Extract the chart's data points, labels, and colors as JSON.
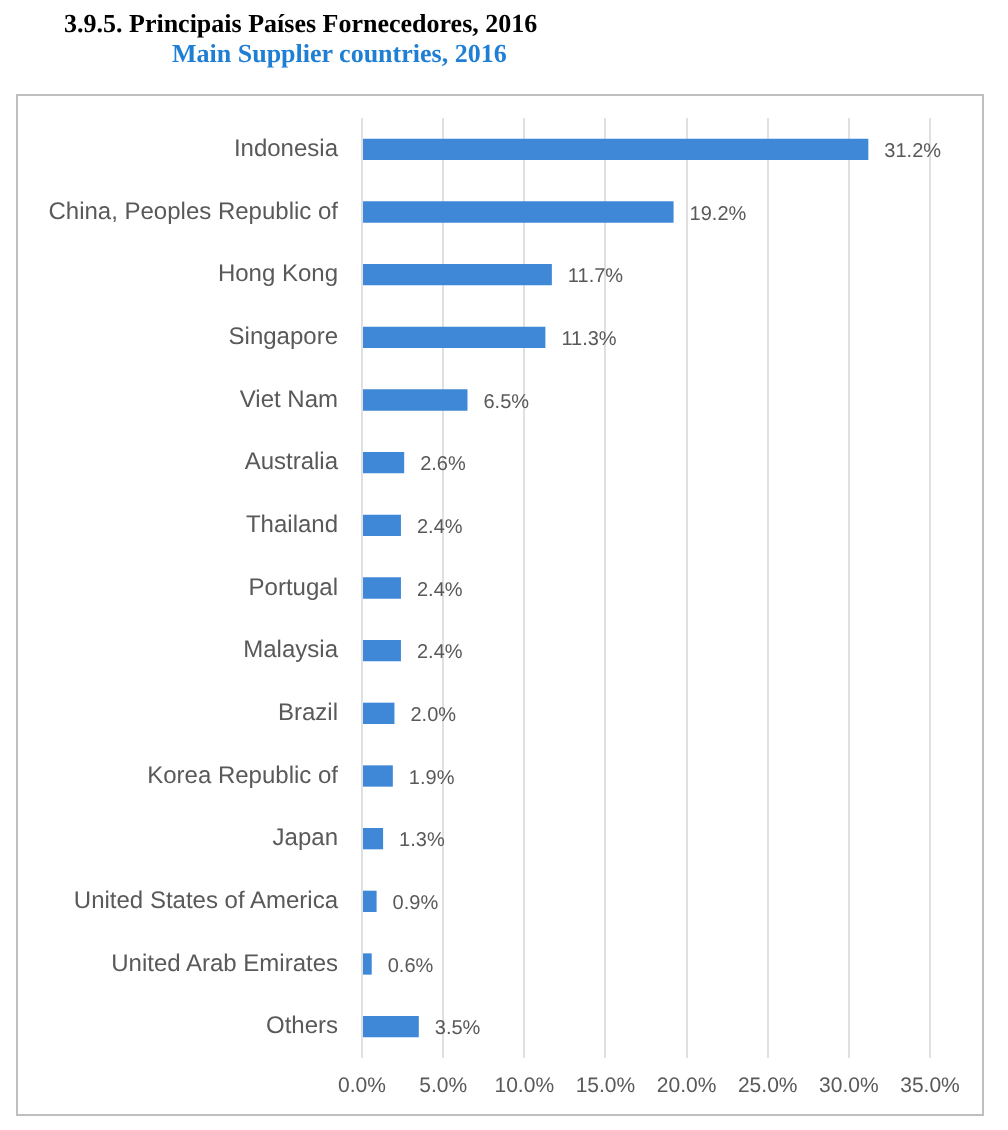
{
  "chart_data": {
    "type": "bar",
    "orientation": "horizontal",
    "title": "3.9.5. Principais Países Fornecedores, 2016",
    "subtitle": "Main Supplier countries, 2016",
    "categories": [
      "Indonesia",
      "China, Peoples Republic of",
      "Hong Kong",
      "Singapore",
      "Viet Nam",
      "Australia",
      "Thailand",
      "Portugal",
      "Malaysia",
      "Brazil",
      "Korea Republic of",
      "Japan",
      "United States of America",
      "United Arab Emirates",
      "Others"
    ],
    "values": [
      31.2,
      19.2,
      11.7,
      11.3,
      6.5,
      2.6,
      2.4,
      2.4,
      2.4,
      2.0,
      1.9,
      1.3,
      0.9,
      0.6,
      3.5
    ],
    "value_labels": [
      "31.2%",
      "19.2%",
      "11.7%",
      "11.3%",
      "6.5%",
      "2.6%",
      "2.4%",
      "2.4%",
      "2.4%",
      "2.0%",
      "1.9%",
      "1.3%",
      "0.9%",
      "0.6%",
      "3.5%"
    ],
    "color": "#3f88d8",
    "xlim": [
      0,
      35
    ],
    "xticks": [
      {
        "value": 0,
        "label": "0.0%"
      },
      {
        "value": 5,
        "label": "5.0%"
      },
      {
        "value": 10,
        "label": "10.0%"
      },
      {
        "value": 15,
        "label": "15.0%"
      },
      {
        "value": 20,
        "label": "20.0%"
      },
      {
        "value": 25,
        "label": "25.0%"
      },
      {
        "value": 30,
        "label": "30.0%"
      },
      {
        "value": 35,
        "label": "35.0%"
      }
    ],
    "grid": "x",
    "legend": false
  }
}
